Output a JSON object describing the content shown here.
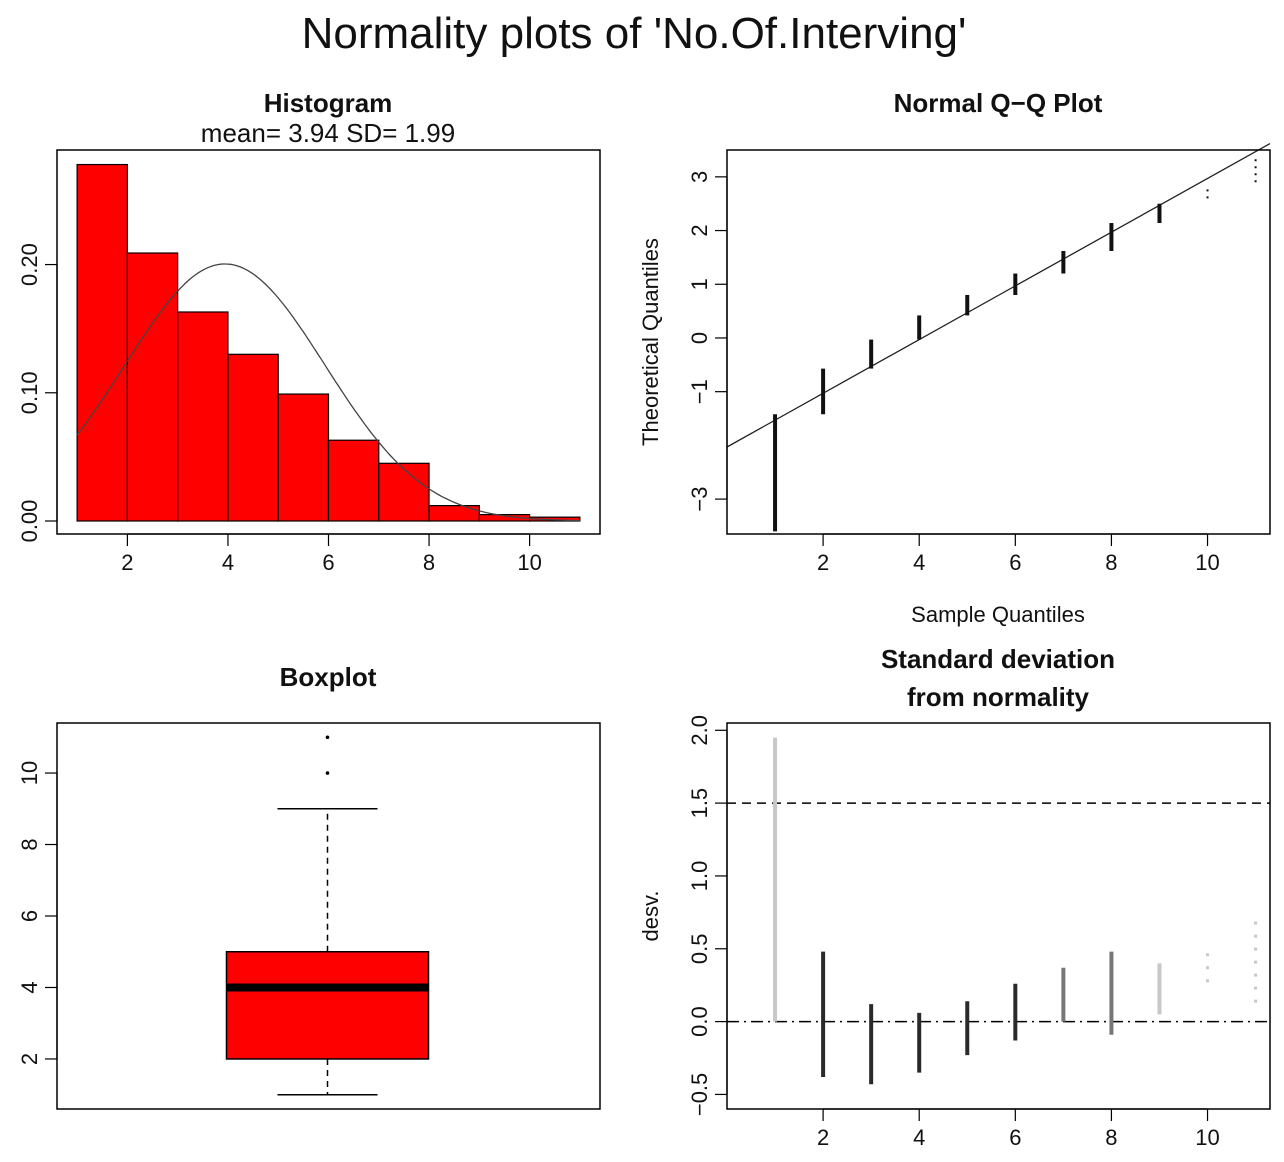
{
  "title": "Normality plots of 'No.Of.Interving'",
  "colors": {
    "fill": "#ff0000",
    "stroke": "#000000",
    "background": "#ffffff"
  },
  "chart_data": [
    {
      "type": "bar",
      "name": "histogram",
      "title": "Histogram",
      "subtitle": "mean= 3.94  SD= 1.99",
      "xlabel": "",
      "ylabel": "",
      "bins": [
        {
          "from": 1,
          "to": 2,
          "density": 0.278
        },
        {
          "from": 2,
          "to": 3,
          "density": 0.209
        },
        {
          "from": 3,
          "to": 4,
          "density": 0.163
        },
        {
          "from": 4,
          "to": 5,
          "density": 0.13
        },
        {
          "from": 5,
          "to": 6,
          "density": 0.099
        },
        {
          "from": 6,
          "to": 7,
          "density": 0.063
        },
        {
          "from": 7,
          "to": 8,
          "density": 0.045
        },
        {
          "from": 8,
          "to": 9,
          "density": 0.012
        },
        {
          "from": 9,
          "to": 10,
          "density": 0.005
        },
        {
          "from": 10,
          "to": 11,
          "density": 0.003
        }
      ],
      "normal_curve": {
        "mean": 3.94,
        "sd": 1.99
      },
      "xlim": [
        0.6,
        11.4
      ],
      "ylim": [
        0,
        0.287
      ],
      "xticks": [
        "2",
        "4",
        "6",
        "8",
        "10"
      ],
      "yticks": [
        "0.00",
        "0.10",
        "0.20"
      ]
    },
    {
      "type": "scatter",
      "name": "qqplot",
      "title": "Normal Q−Q Plot",
      "xlabel": "Sample Quantiles",
      "ylabel": "Theoretical Quantiles",
      "xlim": [
        0.0,
        11.3
      ],
      "ylim": [
        -3.65,
        3.5
      ],
      "xticks": [
        "2",
        "4",
        "6",
        "8",
        "10"
      ],
      "yticks": [
        "−3",
        "−1",
        "0",
        "1",
        "2",
        "3"
      ],
      "reference_line": {
        "intercept": -2.03,
        "slope": 0.5
      },
      "point_ranges": [
        {
          "x": 1,
          "ymin": -3.6,
          "ymax": -1.42
        },
        {
          "x": 2,
          "ymin": -1.42,
          "ymax": -0.57
        },
        {
          "x": 3,
          "ymin": -0.57,
          "ymax": -0.03
        },
        {
          "x": 4,
          "ymin": -0.03,
          "ymax": 0.42
        },
        {
          "x": 5,
          "ymin": 0.42,
          "ymax": 0.8
        },
        {
          "x": 6,
          "ymin": 0.8,
          "ymax": 1.2
        },
        {
          "x": 7,
          "ymin": 1.2,
          "ymax": 1.62
        },
        {
          "x": 8,
          "ymin": 1.62,
          "ymax": 2.14
        },
        {
          "x": 9,
          "ymin": 2.14,
          "ymax": 2.5
        },
        {
          "x": 10,
          "ymin": 2.6,
          "ymax": 2.85
        },
        {
          "x": 11,
          "ymin": 2.9,
          "ymax": 3.35
        }
      ]
    },
    {
      "type": "box",
      "name": "boxplot",
      "title": "Boxplot",
      "min": 1,
      "q1": 2,
      "median": 4,
      "q3": 5,
      "max": 9,
      "outliers": [
        10,
        11
      ],
      "ylim": [
        0.6,
        11.4
      ],
      "yticks": [
        "2",
        "4",
        "6",
        "8",
        "10"
      ]
    },
    {
      "type": "scatter",
      "name": "deviation",
      "title": "Standard deviation",
      "title2": "from normality",
      "xlabel": "",
      "ylabel": "desv.",
      "xlim": [
        0.0,
        11.3
      ],
      "ylim": [
        -0.6,
        2.05
      ],
      "xticks": [
        "2",
        "4",
        "6",
        "8",
        "10"
      ],
      "yticks": [
        "−0.5",
        "0.0",
        "0.5",
        "1.0",
        "1.5",
        "2.0"
      ],
      "hlines": [
        {
          "y": 1.5,
          "style": "dashed"
        },
        {
          "y": 0.0,
          "style": "dotdash"
        }
      ],
      "point_ranges": [
        {
          "x": 1,
          "ymin": 0.0,
          "ymax": 1.95,
          "shade": "light"
        },
        {
          "x": 2,
          "ymin": -0.38,
          "ymax": 0.48,
          "shade": "dark"
        },
        {
          "x": 3,
          "ymin": -0.43,
          "ymax": 0.12,
          "shade": "dark"
        },
        {
          "x": 4,
          "ymin": -0.35,
          "ymax": 0.06,
          "shade": "dark"
        },
        {
          "x": 5,
          "ymin": -0.23,
          "ymax": 0.14,
          "shade": "dark"
        },
        {
          "x": 6,
          "ymin": -0.13,
          "ymax": 0.26,
          "shade": "dark"
        },
        {
          "x": 7,
          "ymin": 0.0,
          "ymax": 0.37,
          "shade": "mid"
        },
        {
          "x": 8,
          "ymin": -0.09,
          "ymax": 0.48,
          "shade": "mid"
        },
        {
          "x": 9,
          "ymin": 0.05,
          "ymax": 0.4,
          "shade": "light"
        },
        {
          "x": 10,
          "ymin": 0.27,
          "ymax": 0.52,
          "shade": "light"
        },
        {
          "x": 11,
          "ymin": 0.13,
          "ymax": 0.7,
          "shade": "light"
        }
      ]
    }
  ]
}
